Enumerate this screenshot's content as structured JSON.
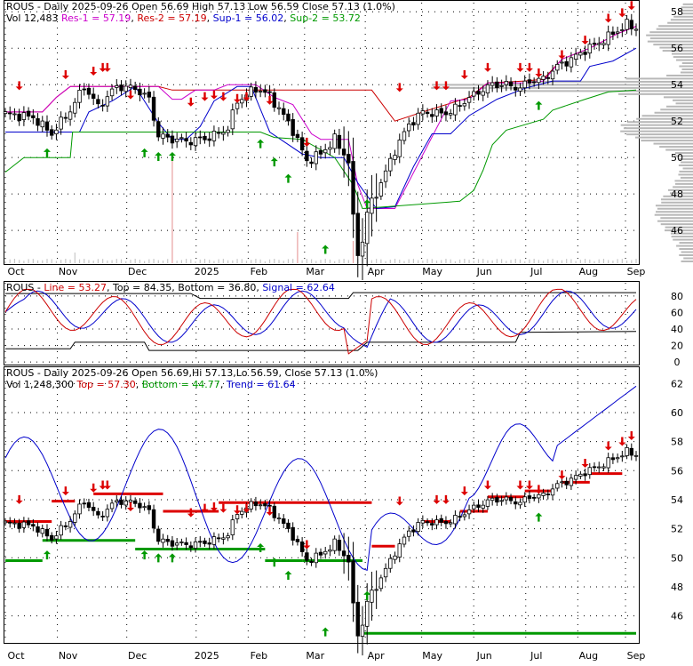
{
  "chart_data": [
    {
      "type": "candlestick",
      "panel": "price",
      "symbol": "ROUS",
      "header": {
        "prefix": "ROUS - Daily 2025-09-26",
        "open_label": "Open",
        "open": "56.69",
        "high_label": "High",
        "high": "57.13",
        "low_label": "Low",
        "low": "56.59",
        "close_label": "Close",
        "close": "57.13",
        "change": "(1.0%)"
      },
      "legend": [
        {
          "label": "Vol",
          "value": "12,483",
          "color": "#000000"
        },
        {
          "label": "Res-1",
          "value": "57.19",
          "color": "#cc00cc"
        },
        {
          "label": "Res-2",
          "value": "57.19",
          "color": "#cc0000"
        },
        {
          "label": "Sup-1",
          "value": "56.02",
          "color": "#0000cc"
        },
        {
          "label": "Sup-2",
          "value": "53.72",
          "color": "#009900"
        }
      ],
      "y_ticks": [
        "46",
        "48",
        "50",
        "52",
        "54",
        "56",
        "58"
      ],
      "ylim": [
        44.2,
        58.5
      ],
      "x_ticks": [
        "Oct",
        "Nov",
        "Dec",
        "2025",
        "Feb",
        "Mar",
        "Apr",
        "May",
        "Jun",
        "Jul",
        "Aug",
        "Sep"
      ],
      "close_path": [
        [
          0,
          52.4
        ],
        [
          6,
          52.2
        ],
        [
          10,
          51.3
        ],
        [
          14,
          52.6
        ],
        [
          17,
          53.9
        ],
        [
          20,
          52.8
        ],
        [
          24,
          53.9
        ],
        [
          28,
          53.8
        ],
        [
          31,
          53.2
        ],
        [
          33,
          51.2
        ],
        [
          36,
          51.0
        ],
        [
          40,
          50.9
        ],
        [
          44,
          51.1
        ],
        [
          48,
          51.6
        ],
        [
          50,
          53.1
        ],
        [
          54,
          53.8
        ],
        [
          57,
          53.4
        ],
        [
          60,
          52.3
        ],
        [
          62,
          51.5
        ],
        [
          65,
          49.8
        ],
        [
          68,
          50.2
        ],
        [
          71,
          51.0
        ],
        [
          74,
          49.8
        ],
        [
          75.5,
          45.0
        ],
        [
          76.5,
          44.6
        ],
        [
          78,
          47.0
        ],
        [
          81,
          48.6
        ],
        [
          84,
          50.4
        ],
        [
          87,
          51.8
        ],
        [
          90,
          52.5
        ],
        [
          93,
          52.4
        ],
        [
          96,
          52.5
        ],
        [
          99,
          53.1
        ],
        [
          102,
          53.6
        ],
        [
          105,
          54.0
        ],
        [
          108,
          54.0
        ],
        [
          111,
          53.8
        ],
        [
          113,
          54.2
        ],
        [
          116,
          54.3
        ],
        [
          119,
          55.0
        ],
        [
          122,
          55.4
        ],
        [
          125,
          55.9
        ],
        [
          128,
          56.3
        ],
        [
          131,
          56.8
        ],
        [
          134,
          57.3
        ],
        [
          136,
          57.1
        ]
      ],
      "resistance_1": [
        [
          0,
          52.5
        ],
        [
          8,
          52.5
        ],
        [
          11,
          53.3
        ],
        [
          14,
          53.9
        ],
        [
          33,
          53.9
        ],
        [
          36,
          53.2
        ],
        [
          38,
          53.2
        ],
        [
          41,
          53.7
        ],
        [
          45,
          53.7
        ],
        [
          48,
          54.0
        ],
        [
          54,
          54.0
        ],
        [
          58,
          53.3
        ],
        [
          62,
          52.9
        ],
        [
          66,
          51.3
        ],
        [
          68,
          51.0
        ],
        [
          74,
          51.0
        ],
        [
          76,
          48.5
        ],
        [
          78,
          47.2
        ],
        [
          84,
          47.2
        ],
        [
          96,
          53.1
        ],
        [
          100,
          53.2
        ],
        [
          104,
          54.1
        ],
        [
          112,
          54.1
        ],
        [
          116,
          54.2
        ],
        [
          120,
          55.4
        ],
        [
          126,
          56.0
        ],
        [
          132,
          56.8
        ],
        [
          136,
          57.2
        ]
      ],
      "resistance_2": [
        [
          0,
          52.5
        ],
        [
          8,
          52.5
        ],
        [
          11,
          53.3
        ],
        [
          14,
          53.9
        ],
        [
          33,
          53.9
        ],
        [
          36,
          53.7
        ],
        [
          79,
          53.7
        ],
        [
          84,
          52.0
        ],
        [
          90,
          52.5
        ],
        [
          100,
          53.3
        ],
        [
          104,
          54.1
        ],
        [
          112,
          54.2
        ],
        [
          116,
          54.3
        ],
        [
          120,
          55.4
        ],
        [
          126,
          56.0
        ],
        [
          132,
          56.8
        ],
        [
          136,
          57.2
        ]
      ],
      "support_1": [
        [
          0,
          51.4
        ],
        [
          16,
          51.4
        ],
        [
          18,
          52.5
        ],
        [
          23,
          53.1
        ],
        [
          28,
          53.9
        ],
        [
          33,
          51.9
        ],
        [
          36,
          51.0
        ],
        [
          39,
          51.0
        ],
        [
          42,
          51.7
        ],
        [
          45,
          53.1
        ],
        [
          50,
          53.9
        ],
        [
          53,
          53.9
        ],
        [
          57,
          51.4
        ],
        [
          64,
          50.2
        ],
        [
          68,
          50.0
        ],
        [
          73,
          50.0
        ],
        [
          76,
          48.6
        ],
        [
          80,
          47.2
        ],
        [
          84,
          47.3
        ],
        [
          88,
          49.5
        ],
        [
          92,
          51.3
        ],
        [
          96,
          51.3
        ],
        [
          100,
          52.3
        ],
        [
          106,
          53.2
        ],
        [
          112,
          53.8
        ],
        [
          118,
          54.2
        ],
        [
          124,
          54.2
        ],
        [
          126,
          55.0
        ],
        [
          131,
          55.3
        ],
        [
          136,
          56.0
        ]
      ],
      "support_2": [
        [
          0,
          49.2
        ],
        [
          4,
          50.0
        ],
        [
          14,
          50.0
        ],
        [
          14.5,
          51.4
        ],
        [
          55,
          51.4
        ],
        [
          58,
          51.1
        ],
        [
          64,
          51.0
        ],
        [
          71,
          50.0
        ],
        [
          75,
          48.5
        ],
        [
          77,
          47.2
        ],
        [
          98,
          47.6
        ],
        [
          101,
          48.2
        ],
        [
          103,
          49.3
        ],
        [
          105,
          50.7
        ],
        [
          108,
          51.5
        ],
        [
          116,
          52.1
        ],
        [
          118,
          52.6
        ],
        [
          125,
          53.2
        ],
        [
          130,
          53.6
        ],
        [
          136,
          53.7
        ]
      ],
      "sell_markers": [
        [
          3,
          53.7
        ],
        [
          13,
          54.3
        ],
        [
          19,
          54.5
        ],
        [
          21,
          54.7
        ],
        [
          22,
          54.7
        ],
        [
          27,
          53.2
        ],
        [
          40,
          52.8
        ],
        [
          43,
          53.1
        ],
        [
          45,
          53.2
        ],
        [
          47,
          53.1
        ],
        [
          50,
          53.0
        ],
        [
          52,
          53.1
        ],
        [
          57,
          52.9
        ],
        [
          65,
          50.6
        ],
        [
          85,
          53.6
        ],
        [
          93,
          53.7
        ],
        [
          95,
          53.7
        ],
        [
          99,
          54.3
        ],
        [
          104,
          54.7
        ],
        [
          111,
          54.7
        ],
        [
          113,
          54.7
        ],
        [
          115,
          54.4
        ],
        [
          120,
          55.4
        ],
        [
          125,
          56.2
        ],
        [
          130,
          57.4
        ],
        [
          133,
          57.7
        ],
        [
          135,
          58.1
        ]
      ],
      "buy_markers": [
        [
          9,
          50.5
        ],
        [
          30,
          50.5
        ],
        [
          33,
          50.3
        ],
        [
          36,
          50.3
        ],
        [
          55,
          51.0
        ],
        [
          58,
          50.0
        ],
        [
          61,
          49.1
        ],
        [
          69,
          45.2
        ],
        [
          78,
          47.7
        ],
        [
          115,
          53.1
        ]
      ]
    },
    {
      "type": "line",
      "panel": "oscillator",
      "header": "ROUS - Line = 53.27, Top = 84.35, Bottom = 36.80, Signal = 62.64",
      "legend": [
        {
          "label": "Line",
          "value": "53.27",
          "color": "#cc0000"
        },
        {
          "label": "Top",
          "value": "84.35",
          "color": "#000000"
        },
        {
          "label": "Bottom",
          "value": "36.80",
          "color": "#000000"
        },
        {
          "label": "Signal",
          "value": "62.64",
          "color": "#0000cc"
        }
      ],
      "y_ticks": [
        "0",
        "20",
        "40",
        "60",
        "80"
      ],
      "ylim": [
        -2,
        96
      ]
    },
    {
      "type": "candlestick",
      "panel": "trend",
      "header": {
        "prefix": "ROUS - Daily 2025-09-26",
        "open_label": "Open",
        "open": "56.69",
        "high_label": "Hi",
        "high": "57.13",
        "low_label": "Lo",
        "low": "56.59",
        "close_label": "Close",
        "close": "57.13",
        "change": "(1.0%)"
      },
      "legend": [
        {
          "label": "Vol",
          "value": "1,248,300",
          "color": "#000000"
        },
        {
          "label": "Top",
          "value": "57.30",
          "color": "#cc0000"
        },
        {
          "label": "Bottom",
          "value": "44.77",
          "color": "#009900"
        },
        {
          "label": "Trend",
          "value": "61.64",
          "color": "#0000cc"
        }
      ],
      "y_ticks": [
        "46",
        "48",
        "50",
        "52",
        "54",
        "56",
        "58",
        "60",
        "62"
      ],
      "ylim": [
        44.2,
        63.0
      ],
      "x_ticks": [
        "Oct",
        "Nov",
        "Dec",
        "2025",
        "Feb",
        "Mar",
        "Apr",
        "May",
        "Jun",
        "Jul",
        "Aug",
        "Sep"
      ]
    }
  ]
}
